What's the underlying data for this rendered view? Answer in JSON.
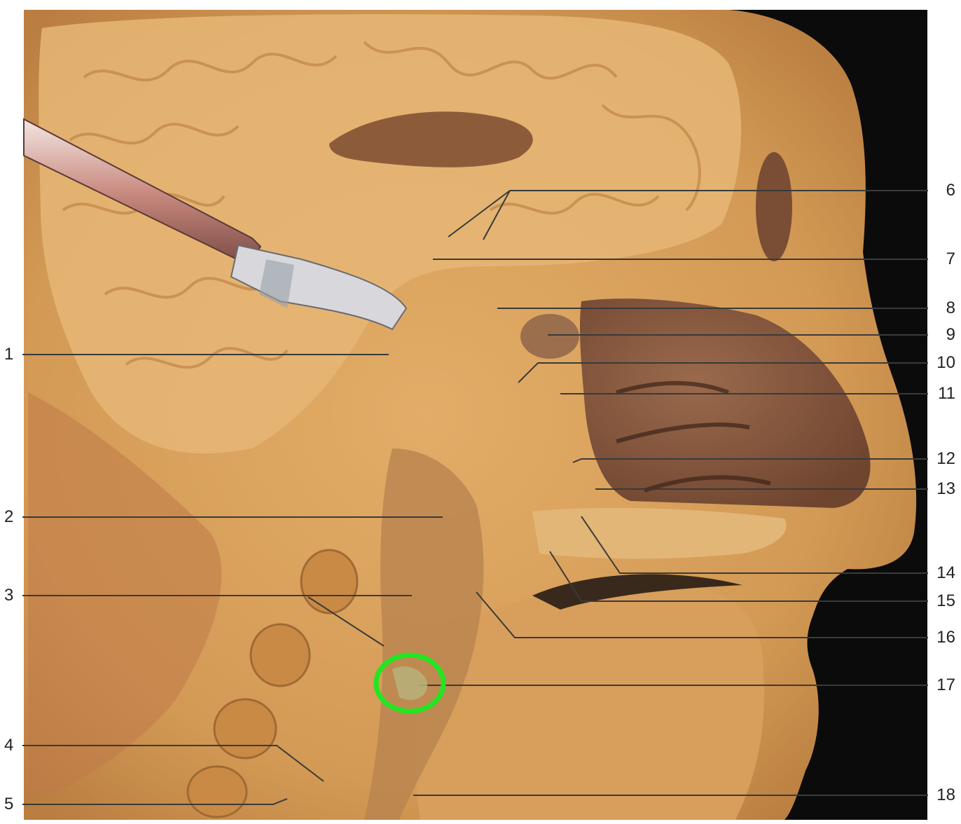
{
  "figure": {
    "labels_left": [
      "1",
      "2",
      "3",
      "4",
      "5"
    ],
    "labels_right": [
      "6",
      "7",
      "8",
      "9",
      "10",
      "11",
      "12",
      "13",
      "14",
      "15",
      "16",
      "17",
      "18"
    ],
    "highlight_label": "17"
  },
  "colors": {
    "background_dark": "#0b0b0b",
    "tissue_base": "#d9a45e",
    "tissue_light": "#e8bd7a",
    "tissue_dark": "#a86e36",
    "nasal_cavity": "#8a5a3e",
    "leader_line": "#3a3a3a",
    "highlight_circle": "#22e622",
    "label_text": "#222222"
  }
}
